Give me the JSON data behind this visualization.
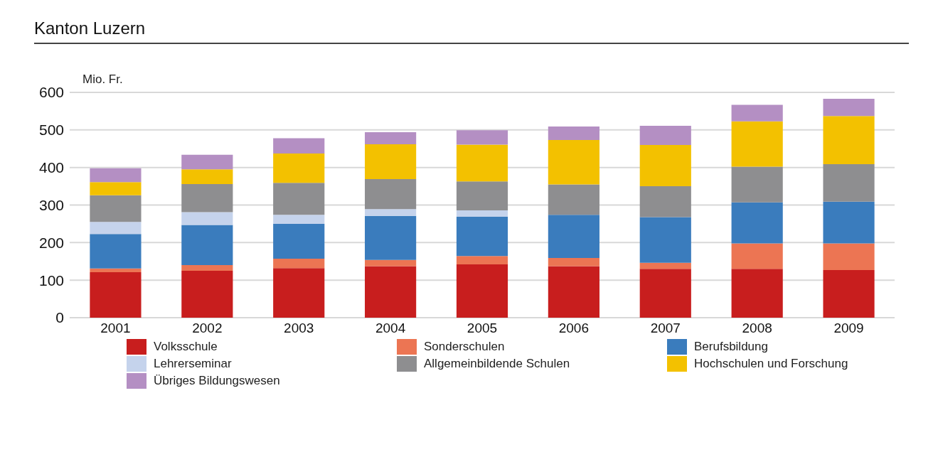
{
  "chart_data": {
    "type": "bar",
    "title": "Kanton Luzern",
    "ylabel": "Mio. Fr.",
    "stacked": true,
    "grid": "y",
    "legend": "bottom",
    "categories": [
      "2001",
      "2002",
      "2003",
      "2004",
      "2005",
      "2006",
      "2007",
      "2008",
      "2009"
    ],
    "ylim": [
      0,
      600
    ],
    "yticks": [
      0,
      100,
      200,
      300,
      400,
      500,
      600
    ],
    "series": [
      {
        "name": "Volksschule",
        "color": "#c81e1e",
        "values": [
          121,
          125,
          132,
          137,
          142,
          137,
          130,
          130,
          127
        ]
      },
      {
        "name": "Sonderschulen",
        "color": "#ec7553",
        "values": [
          10,
          15,
          25,
          17,
          22,
          22,
          16,
          68,
          71
        ]
      },
      {
        "name": "Berufsbildung",
        "color": "#3a7cbd",
        "values": [
          92,
          107,
          93,
          117,
          105,
          115,
          122,
          109,
          111
        ]
      },
      {
        "name": "Lehrerseminar",
        "color": "#c5d3ec",
        "values": [
          32,
          34,
          24,
          18,
          17,
          0,
          0,
          0,
          0
        ]
      },
      {
        "name": "Allgemeinbildende Schulen",
        "color": "#8e8e90",
        "values": [
          71,
          75,
          85,
          80,
          77,
          81,
          82,
          95,
          100
        ]
      },
      {
        "name": "Hochschulen und Forschung",
        "color": "#f3c100",
        "values": [
          35,
          39,
          78,
          93,
          98,
          118,
          110,
          121,
          128
        ]
      },
      {
        "name": "Übriges Bildungswesen",
        "color": "#b48fc3",
        "values": [
          37,
          39,
          41,
          32,
          38,
          36,
          51,
          44,
          46
        ]
      }
    ]
  }
}
